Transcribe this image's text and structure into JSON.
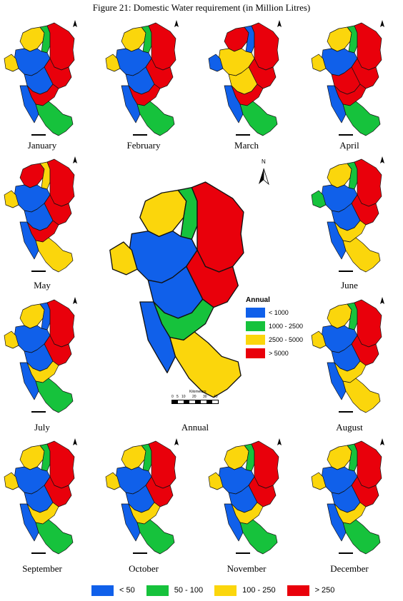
{
  "figure_title": "Figure  21: Domestic Water requirement (in Million Litres)",
  "colors": {
    "blue": "#1060ea",
    "green": "#16c23c",
    "yellow": "#fbd60c",
    "red": "#e9000b",
    "outline": "#111111"
  },
  "monthly_maps": [
    {
      "month": "January",
      "palette": [
        "yellow",
        "green",
        "red",
        "blue",
        "yellow",
        "red",
        "blue",
        "red",
        "blue",
        "green"
      ]
    },
    {
      "month": "February",
      "palette": [
        "yellow",
        "green",
        "red",
        "blue",
        "yellow",
        "red",
        "blue",
        "red",
        "blue",
        "green"
      ]
    },
    {
      "month": "March",
      "palette": [
        "red",
        "blue",
        "red",
        "yellow",
        "blue",
        "red",
        "yellow",
        "red",
        "blue",
        "green"
      ]
    },
    {
      "month": "April",
      "palette": [
        "yellow",
        "green",
        "red",
        "blue",
        "yellow",
        "red",
        "red",
        "red",
        "blue",
        "green"
      ]
    },
    {
      "month": "May",
      "palette": [
        "red",
        "yellow",
        "red",
        "blue",
        "yellow",
        "red",
        "blue",
        "red",
        "blue",
        "yellow"
      ]
    },
    {
      "month": "June",
      "palette": [
        "yellow",
        "green",
        "red",
        "blue",
        "green",
        "red",
        "blue",
        "yellow",
        "blue",
        "yellow"
      ]
    },
    {
      "month": "July",
      "palette": [
        "yellow",
        "blue",
        "red",
        "blue",
        "yellow",
        "red",
        "blue",
        "yellow",
        "blue",
        "green"
      ]
    },
    {
      "month": "August",
      "palette": [
        "yellow",
        "green",
        "red",
        "blue",
        "yellow",
        "red",
        "blue",
        "yellow",
        "blue",
        "yellow"
      ]
    },
    {
      "month": "September",
      "palette": [
        "yellow",
        "green",
        "red",
        "blue",
        "yellow",
        "red",
        "blue",
        "yellow",
        "blue",
        "green"
      ]
    },
    {
      "month": "October",
      "palette": [
        "yellow",
        "green",
        "red",
        "blue",
        "yellow",
        "red",
        "blue",
        "yellow",
        "blue",
        "green"
      ]
    },
    {
      "month": "November",
      "palette": [
        "yellow",
        "green",
        "red",
        "blue",
        "yellow",
        "red",
        "blue",
        "yellow",
        "blue",
        "green"
      ]
    },
    {
      "month": "December",
      "palette": [
        "yellow",
        "green",
        "red",
        "blue",
        "yellow",
        "red",
        "blue",
        "yellow",
        "blue",
        "green"
      ]
    }
  ],
  "annual_map": {
    "label": "Annual",
    "palette": [
      "yellow",
      "green",
      "red",
      "blue",
      "yellow",
      "red",
      "blue",
      "green",
      "blue",
      "yellow"
    ],
    "legend_title": "Annual",
    "legend": [
      {
        "label": "< 1000",
        "color": "blue"
      },
      {
        "label": "1000 - 2500",
        "color": "green"
      },
      {
        "label": "2500 - 5000",
        "color": "yellow"
      },
      {
        "label": "> 5000",
        "color": "red"
      }
    ],
    "north_label": "N",
    "scale_label": "Kilometers",
    "scale_ticks": [
      "0",
      "5",
      "10",
      "20",
      "30",
      "40"
    ]
  },
  "monthly_legend": [
    {
      "label": "< 50",
      "color": "blue"
    },
    {
      "label": "50 - 100",
      "color": "green"
    },
    {
      "label": "100 - 250",
      "color": "yellow"
    },
    {
      "label": "> 250",
      "color": "red"
    }
  ]
}
